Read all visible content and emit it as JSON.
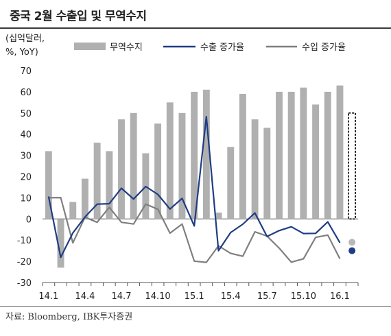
{
  "header": {
    "title": "중국 2월 수출입 및 무역수지"
  },
  "footer": {
    "source": "자료: Bloomberg, IBK투자증권"
  },
  "chart_data": {
    "type": "bar+line",
    "title": "중국 2월 수출입 및 무역수지",
    "ylabel": "(십억달러, %, YoY)",
    "xlabel": "",
    "ylim": [
      -30,
      70
    ],
    "yticks": [
      -30,
      -20,
      -10,
      0,
      10,
      20,
      30,
      40,
      50,
      60,
      70
    ],
    "x_tick_labels": [
      "14.1",
      "14.4",
      "14.7",
      "14.10",
      "15.1",
      "15.4",
      "15.7",
      "15.10",
      "16.1"
    ],
    "legend_position": "top",
    "months": [
      "14.1",
      "14.2",
      "14.3",
      "14.4",
      "14.5",
      "14.6",
      "14.7",
      "14.8",
      "14.9",
      "14.10",
      "14.11",
      "14.12",
      "15.1",
      "15.2",
      "15.3",
      "15.4",
      "15.5",
      "15.6",
      "15.7",
      "15.8",
      "15.9",
      "15.10",
      "15.11",
      "15.12",
      "16.1"
    ],
    "series": [
      {
        "name": "무역수지",
        "kind": "bar",
        "color": "#b0b0b0",
        "values": [
          32,
          -23,
          8,
          19,
          36,
          32,
          47,
          50,
          31,
          45,
          55,
          50,
          60,
          61,
          3,
          34,
          59,
          47,
          43,
          60,
          60,
          62,
          54,
          60,
          63
        ]
      },
      {
        "name": "수출 증가율",
        "kind": "line",
        "color": "#1f3d84",
        "values": [
          10.6,
          -18.1,
          -6.6,
          0.9,
          7.0,
          7.2,
          14.5,
          9.4,
          15.3,
          11.6,
          4.7,
          9.7,
          -3.3,
          48.3,
          -15.0,
          -6.4,
          -2.5,
          2.8,
          -8.3,
          -5.5,
          -3.7,
          -6.9,
          -6.8,
          -1.4,
          -11.2
        ]
      },
      {
        "name": "수입 증가율",
        "kind": "line",
        "color": "#7f7f7f",
        "values": [
          10.0,
          10.1,
          -11.3,
          0.8,
          -1.6,
          5.5,
          -1.6,
          -2.4,
          7.0,
          4.6,
          -6.7,
          -2.4,
          -19.9,
          -20.5,
          -12.7,
          -16.2,
          -17.6,
          -6.1,
          -8.1,
          -13.8,
          -20.4,
          -18.8,
          -8.7,
          -7.6,
          -18.8
        ]
      }
    ],
    "forecast_markers": [
      {
        "kind": "bar",
        "style": "dashed-outline",
        "value": 50
      },
      {
        "series": "수입 증가율",
        "value": -11,
        "color": "#b8b8b8"
      },
      {
        "series": "수출 증가율",
        "value": -15,
        "color": "#1f3d84"
      }
    ]
  }
}
